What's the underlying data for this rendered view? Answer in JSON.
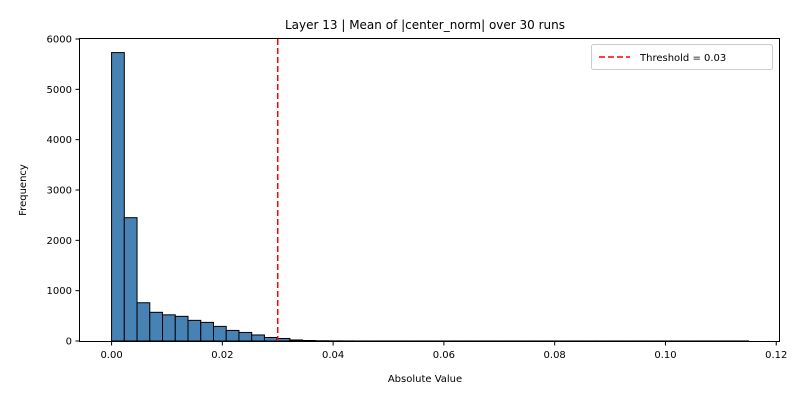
{
  "chart_data": {
    "type": "bar",
    "title": "Layer 13 | Mean of |center_norm| over 30 runs",
    "xlabel": "Absolute Value",
    "ylabel": "Frequency",
    "xlim": [
      -0.0057,
      0.1205
    ],
    "ylim": [
      0,
      6000
    ],
    "xticks": [
      0.0,
      0.02,
      0.04,
      0.06,
      0.08,
      0.1,
      0.12
    ],
    "xtick_labels": [
      "0.00",
      "0.02",
      "0.04",
      "0.06",
      "0.08",
      "0.10",
      "0.12"
    ],
    "yticks": [
      0,
      1000,
      2000,
      3000,
      4000,
      5000,
      6000
    ],
    "ytick_labels": [
      "0",
      "1000",
      "2000",
      "3000",
      "4000",
      "5000",
      "6000"
    ],
    "bin_width": 0.0023,
    "bin_starts": [
      0.0,
      0.0023,
      0.0046,
      0.0069,
      0.0092,
      0.0115,
      0.0138,
      0.0161,
      0.0184,
      0.0207,
      0.023,
      0.0253,
      0.0276,
      0.0299,
      0.0322,
      0.0345,
      0.0368,
      0.0391,
      0.0414,
      0.0437,
      0.046,
      0.0483,
      0.0506,
      0.0529,
      0.0552,
      0.0575,
      0.0598,
      0.0621,
      0.0644,
      0.0667,
      0.069,
      0.0713,
      0.0736,
      0.0759,
      0.0782,
      0.0805,
      0.0828,
      0.0851,
      0.0874,
      0.0897,
      0.092,
      0.0943,
      0.0966,
      0.0989,
      0.1012,
      0.1035,
      0.1058,
      0.1081,
      0.1104,
      0.1127
    ],
    "values": [
      5730,
      2450,
      760,
      570,
      520,
      490,
      410,
      370,
      290,
      210,
      170,
      120,
      70,
      50,
      20,
      10,
      5,
      3,
      2,
      1,
      1,
      1,
      1,
      1,
      1,
      1,
      1,
      1,
      1,
      1,
      1,
      1,
      1,
      1,
      1,
      1,
      1,
      1,
      1,
      1,
      1,
      1,
      1,
      1,
      1,
      1,
      1,
      1,
      1,
      1
    ],
    "bar_color": "#4682b4",
    "bar_edge_color": "#000000",
    "threshold": {
      "value": 0.03,
      "label": "Threshold = 0.03",
      "color": "#ff0000",
      "style": "dashed"
    },
    "legend_position": "top-right",
    "grid": false
  }
}
